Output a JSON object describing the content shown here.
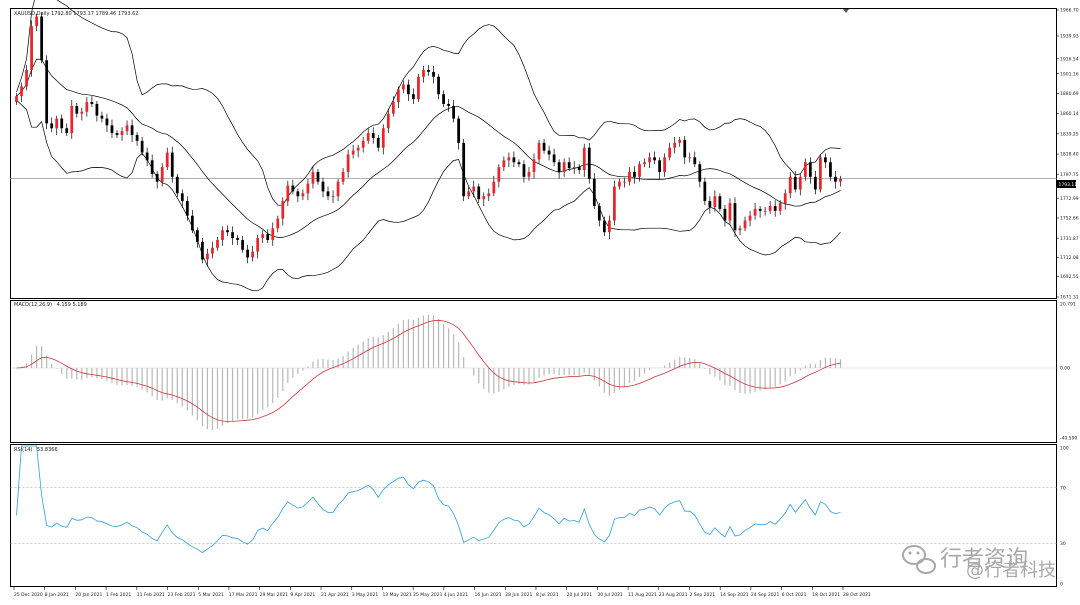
{
  "chart_data": [
    {
      "type": "candlestick",
      "title": "XAUUSD,Daily  1792.80 1793.17 1789.46 1793.62",
      "current_price": 1793.11,
      "ylim": [
        1671.31,
        1966.7
      ],
      "y_ticks": [
        "1966.70",
        "1939.93",
        "1916.54",
        "1901.16",
        "1880.69",
        "1860.14",
        "1839.25",
        "1818.40",
        "1797.75",
        "1772.99",
        "1752.66",
        "1731.87",
        "1712.08",
        "1692.55",
        "1671.31"
      ],
      "x_ticks": [
        "25 Dec 2020",
        "8 Jan 2021",
        "20 Jan 2021",
        "1 Feb 2021",
        "11 Feb 2021",
        "23 Feb 2021",
        "5 Mar 2021",
        "17 Mar 2021",
        "29 Mar 2021",
        "9 Apr 2021",
        "21 Apr 2021",
        "3 May 2021",
        "13 May 2021",
        "25 May 2021",
        "4 Jun 2021",
        "16 Jun 2021",
        "28 Jun 2021",
        "8 Jul 2021",
        "20 Jul 2021",
        "30 Jul 2021",
        "11 Aug 2021",
        "23 Aug 2021",
        "2 Sep 2021",
        "14 Sep 2021",
        "24 Sep 2021",
        "6 Oct 2021",
        "18 Oct 2021",
        "28 Oct 2021"
      ],
      "close": [
        1878,
        1888,
        1905,
        1950,
        1960,
        1915,
        1850,
        1845,
        1855,
        1845,
        1840,
        1868,
        1860,
        1862,
        1872,
        1870,
        1858,
        1855,
        1848,
        1840,
        1838,
        1842,
        1848,
        1838,
        1832,
        1820,
        1812,
        1798,
        1790,
        1805,
        1820,
        1795,
        1778,
        1770,
        1755,
        1740,
        1728,
        1710,
        1716,
        1722,
        1730,
        1740,
        1738,
        1732,
        1730,
        1720,
        1712,
        1718,
        1732,
        1736,
        1730,
        1742,
        1752,
        1770,
        1786,
        1780,
        1775,
        1778,
        1788,
        1800,
        1790,
        1780,
        1775,
        1775,
        1790,
        1800,
        1818,
        1822,
        1825,
        1832,
        1840,
        1835,
        1825,
        1845,
        1860,
        1872,
        1885,
        1890,
        1880,
        1875,
        1898,
        1905,
        1903,
        1898,
        1880,
        1870,
        1868,
        1855,
        1830,
        1775,
        1780,
        1785,
        1772,
        1775,
        1778,
        1790,
        1805,
        1812,
        1815,
        1810,
        1808,
        1795,
        1800,
        1813,
        1830,
        1822,
        1818,
        1810,
        1800,
        1810,
        1804,
        1805,
        1802,
        1825,
        1793,
        1765,
        1750,
        1738,
        1750,
        1785,
        1790,
        1790,
        1800,
        1795,
        1808,
        1810,
        1815,
        1812,
        1800,
        1815,
        1825,
        1830,
        1833,
        1815,
        1815,
        1808,
        1790,
        1770,
        1764,
        1775,
        1762,
        1750,
        1768,
        1740,
        1742,
        1750,
        1755,
        1762,
        1760,
        1760,
        1765,
        1760,
        1768,
        1778,
        1795,
        1782,
        1795,
        1810,
        1795,
        1782,
        1815,
        1810,
        1795,
        1790,
        1793
      ],
      "panes": [
        {
          "name": "MACD(12,26,9)",
          "value": "4.159 5.189",
          "ticks": [
            "20.791",
            "0.00",
            "-40.590"
          ]
        },
        {
          "name": "RSI(14)",
          "value": "53.8366",
          "ticks": [
            "100",
            "70",
            "30",
            "0"
          ]
        }
      ]
    }
  ],
  "watermark": {
    "part1": "行者资询",
    "part2": "@行者科技"
  }
}
